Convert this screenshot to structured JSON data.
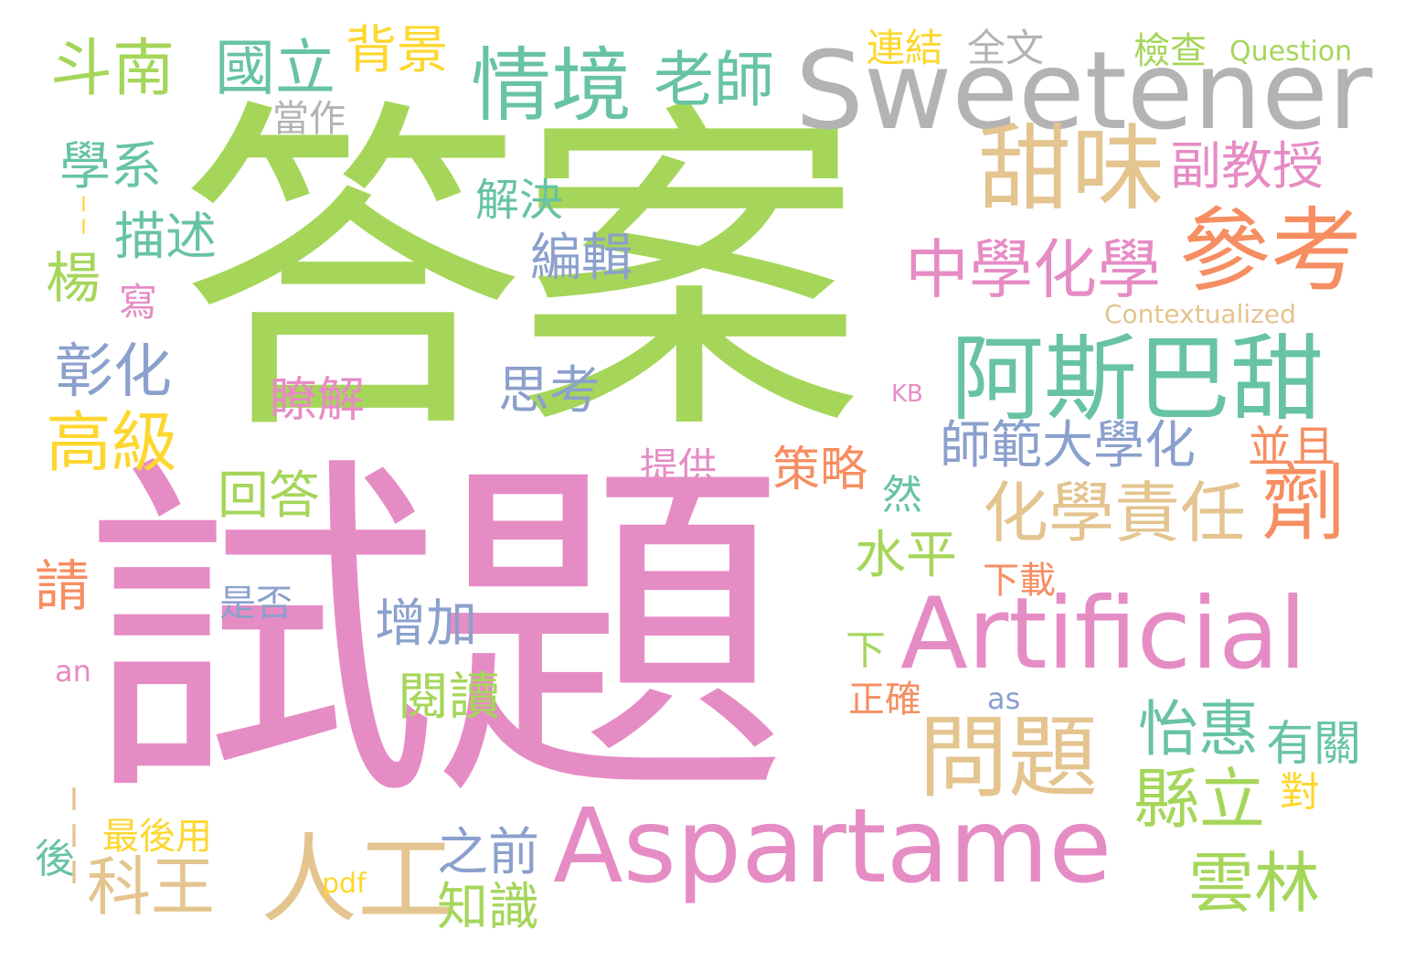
{
  "palette": {
    "green": "#a5d65a",
    "pink": "#e68cc5",
    "gray": "#b3b3b3",
    "tan": "#e4c48f",
    "orange": "#f68e62",
    "teal": "#67c3a4",
    "blue": "#8ba0cc",
    "yellow": "#fdd72f"
  },
  "words": [
    {
      "text": "答案",
      "color": "green"
    },
    {
      "text": "試題",
      "color": "pink"
    },
    {
      "text": "Sweetener",
      "color": "gray"
    },
    {
      "text": "Aspartame",
      "color": "pink"
    },
    {
      "text": "Artificial",
      "color": "pink"
    },
    {
      "text": "阿斯巴甜",
      "color": "teal"
    },
    {
      "text": "參考",
      "color": "orange"
    },
    {
      "text": "甜味",
      "color": "tan"
    },
    {
      "text": "問題",
      "color": "tan"
    },
    {
      "text": "人工",
      "color": "tan"
    },
    {
      "text": "情境",
      "color": "teal"
    },
    {
      "text": "劑",
      "color": "orange"
    },
    {
      "text": "中學化學",
      "color": "pink"
    },
    {
      "text": "化學責任",
      "color": "tan"
    },
    {
      "text": "斗南",
      "color": "green"
    },
    {
      "text": "國立",
      "color": "teal"
    },
    {
      "text": "老師",
      "color": "teal"
    },
    {
      "text": "高級",
      "color": "yellow"
    },
    {
      "text": "縣立",
      "color": "green"
    },
    {
      "text": "雲林",
      "color": "green"
    },
    {
      "text": "科王",
      "color": "tan"
    },
    {
      "text": "彰化",
      "color": "blue"
    },
    {
      "text": "怡惠",
      "color": "teal"
    },
    {
      "text": "副教授",
      "color": "pink"
    },
    {
      "text": "師範大學化",
      "color": "blue"
    },
    {
      "text": "背景",
      "color": "yellow"
    },
    {
      "text": "學系",
      "color": "teal"
    },
    {
      "text": "描述",
      "color": "teal"
    },
    {
      "text": "楊",
      "color": "green"
    },
    {
      "text": "編輯",
      "color": "blue"
    },
    {
      "text": "解決",
      "color": "teal"
    },
    {
      "text": "回答",
      "color": "green"
    },
    {
      "text": "思考",
      "color": "blue"
    },
    {
      "text": "水平",
      "color": "green"
    },
    {
      "text": "增加",
      "color": "blue"
    },
    {
      "text": "閱讀",
      "color": "green"
    },
    {
      "text": "有關",
      "color": "teal"
    },
    {
      "text": "之前",
      "color": "blue"
    },
    {
      "text": "知識",
      "color": "green"
    },
    {
      "text": "策略",
      "color": "orange"
    },
    {
      "text": "並且",
      "color": "orange"
    },
    {
      "text": "瞭解",
      "color": "pink"
    },
    {
      "text": "連結",
      "color": "yellow"
    },
    {
      "text": "全文",
      "color": "gray"
    },
    {
      "text": "檢查",
      "color": "green"
    },
    {
      "text": "Question",
      "color": "green"
    },
    {
      "text": "Contextualized",
      "color": "tan"
    },
    {
      "text": "當作",
      "color": "gray"
    },
    {
      "text": "請",
      "color": "orange"
    },
    {
      "text": "寫",
      "color": "pink"
    },
    {
      "text": "提供",
      "color": "pink"
    },
    {
      "text": "然",
      "color": "teal"
    },
    {
      "text": "下載",
      "color": "orange"
    },
    {
      "text": "是否",
      "color": "blue"
    },
    {
      "text": "下",
      "color": "green"
    },
    {
      "text": "正確",
      "color": "orange"
    },
    {
      "text": "對",
      "color": "yellow"
    },
    {
      "text": "最後用",
      "color": "yellow"
    },
    {
      "text": "後",
      "color": "teal"
    },
    {
      "text": "KB",
      "color": "pink"
    },
    {
      "text": "an",
      "color": "pink"
    },
    {
      "text": "as",
      "color": "blue"
    },
    {
      "text": "pdf",
      "color": "yellow"
    },
    {
      "text": "II",
      "color": "yellow"
    },
    {
      "text": "III",
      "color": "tan"
    }
  ]
}
